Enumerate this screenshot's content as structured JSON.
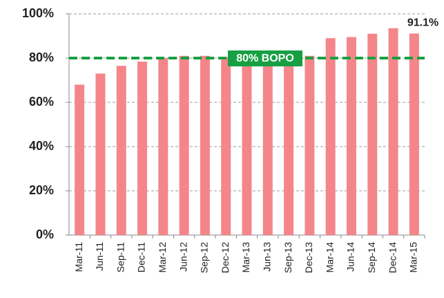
{
  "chart_data": {
    "type": "bar",
    "categories": [
      "Mar-11",
      "Jun-11",
      "Sep-11",
      "Dec-11",
      "Mar-12",
      "Jun-12",
      "Sep-12",
      "Dec-12",
      "Mar-13",
      "Jun-13",
      "Sep-13",
      "Dec-13",
      "Mar-14",
      "Jun-14",
      "Sep-14",
      "Dec-14",
      "Mar-15"
    ],
    "values": [
      68,
      73,
      76.5,
      78.4,
      80,
      81,
      81,
      80.5,
      80,
      80,
      80,
      81,
      89,
      89.5,
      91,
      93.5,
      91.1
    ],
    "value_labels": [
      null,
      null,
      null,
      null,
      null,
      null,
      null,
      null,
      null,
      null,
      null,
      null,
      null,
      null,
      null,
      null,
      "91.1%"
    ],
    "color": "#f4868a",
    "ylim": [
      0,
      100
    ],
    "yticks": [
      {
        "value": 0,
        "label": "0%"
      },
      {
        "value": 20,
        "label": "20%"
      },
      {
        "value": 40,
        "label": "40%"
      },
      {
        "value": 60,
        "label": "60%"
      },
      {
        "value": 80,
        "label": "80%"
      },
      {
        "value": 100,
        "label": "100%"
      }
    ],
    "grid": true,
    "reference_line": {
      "value": 80,
      "label": "80% BOPO",
      "color": "#17a043"
    }
  }
}
